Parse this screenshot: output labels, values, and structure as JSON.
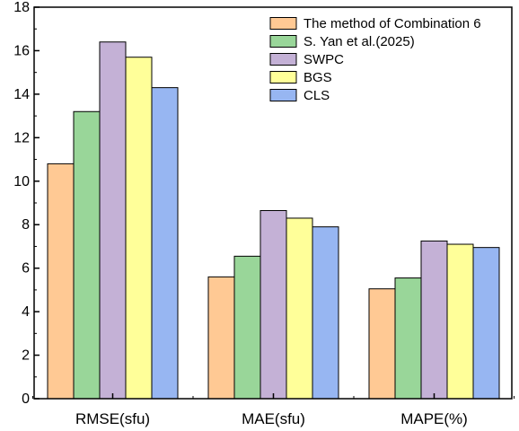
{
  "chart_data": {
    "type": "bar",
    "categories": [
      "RMSE(sfu)",
      "MAE(sfu)",
      "MAPE(%)"
    ],
    "series": [
      {
        "name": "The method of Combination 6",
        "color": "#FFC994",
        "values": [
          10.8,
          5.6,
          5.05
        ]
      },
      {
        "name": "S. Yan et al.(2025)",
        "color": "#99D699",
        "values": [
          13.2,
          6.55,
          5.55
        ]
      },
      {
        "name": "SWPC",
        "color": "#C4B1D6",
        "values": [
          16.4,
          8.65,
          7.25
        ]
      },
      {
        "name": "BGS",
        "color": "#FFFF99",
        "values": [
          15.7,
          8.3,
          7.1
        ]
      },
      {
        "name": "CLS",
        "color": "#97B6F2",
        "values": [
          14.3,
          7.9,
          6.95
        ]
      }
    ],
    "yticks": [
      "0",
      "2",
      "4",
      "6",
      "8",
      "10",
      "12",
      "14",
      "16",
      "18"
    ],
    "ylim": [
      0,
      18
    ],
    "xlabel": "",
    "ylabel": "",
    "legend_position": "top-right",
    "grid": false
  }
}
